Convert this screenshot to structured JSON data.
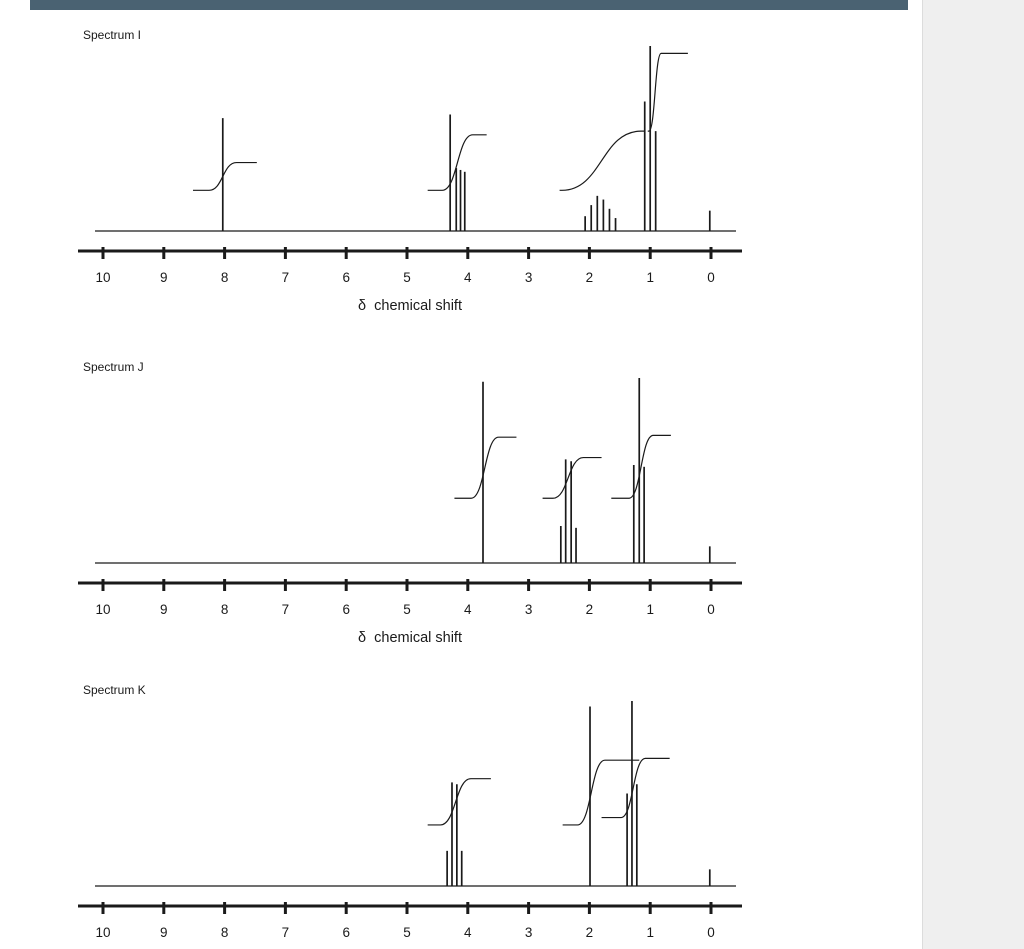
{
  "page": {
    "topbar_color": "#4a6272",
    "side_panel_color": "#efefef",
    "ink_color": "#1a1a1a"
  },
  "chart_data": [
    {
      "type": "line",
      "title": "Spectrum I",
      "xlabel": "δ  chemical shift",
      "x_axis": {
        "ticks": [
          10,
          9,
          8,
          7,
          6,
          5,
          4,
          3,
          2,
          1,
          0
        ],
        "unit_direction": "reversed"
      },
      "peak_groups": [
        {
          "name": "singlet",
          "center": 8.0,
          "lines": [
            [
              8.03,
              0.61
            ]
          ]
        },
        {
          "name": "multiplet",
          "center": 4.15,
          "lines": [
            [
              4.29,
              0.63
            ],
            [
              4.19,
              0.34
            ],
            [
              4.12,
              0.33
            ],
            [
              4.05,
              0.32
            ]
          ]
        },
        {
          "name": "multiplet",
          "center": 1.8,
          "lines": [
            [
              2.07,
              0.08
            ],
            [
              1.97,
              0.14
            ],
            [
              1.87,
              0.19
            ],
            [
              1.77,
              0.17
            ],
            [
              1.67,
              0.12
            ],
            [
              1.57,
              0.07
            ]
          ]
        },
        {
          "name": "triplet",
          "center": 1.0,
          "lines": [
            [
              1.09,
              0.7
            ],
            [
              1.0,
              1.0
            ],
            [
              0.91,
              0.54
            ]
          ]
        },
        {
          "name": "tms",
          "center": 0.0,
          "lines": [
            [
              0.02,
              0.11
            ]
          ]
        }
      ],
      "integrals": [
        {
          "from": 8.52,
          "to": 7.47,
          "y_from": 0.22,
          "y_to": 0.37,
          "rise_at": 8.03,
          "rise_width": 0.45
        },
        {
          "from": 4.66,
          "to": 3.69,
          "y_from": 0.22,
          "y_to": 0.52,
          "rise_at": 4.17,
          "rise_width": 0.5
        },
        {
          "from": 2.49,
          "to": 1.09,
          "y_from": 0.22,
          "y_to": 0.54,
          "rise_at": 1.8,
          "rise_width": 1.3
        },
        {
          "from": 1.04,
          "to": 0.38,
          "y_from": 0.54,
          "y_to": 0.96,
          "rise_at": 0.92,
          "rise_width": 0.2
        }
      ]
    },
    {
      "type": "line",
      "title": "Spectrum J",
      "xlabel": "δ  chemical shift",
      "x_axis": {
        "ticks": [
          10,
          9,
          8,
          7,
          6,
          5,
          4,
          3,
          2,
          1,
          0
        ],
        "unit_direction": "reversed"
      },
      "peak_groups": [
        {
          "name": "singlet",
          "center": 3.75,
          "lines": [
            [
              3.75,
              0.98
            ]
          ]
        },
        {
          "name": "quartet",
          "center": 2.35,
          "lines": [
            [
              2.47,
              0.2
            ],
            [
              2.39,
              0.56
            ],
            [
              2.3,
              0.55
            ],
            [
              2.22,
              0.19
            ]
          ]
        },
        {
          "name": "triplet",
          "center": 1.18,
          "lines": [
            [
              1.27,
              0.53
            ],
            [
              1.18,
              1.0
            ],
            [
              1.1,
              0.52
            ]
          ]
        },
        {
          "name": "tms",
          "center": 0.0,
          "lines": [
            [
              0.02,
              0.09
            ]
          ]
        }
      ],
      "integrals": [
        {
          "from": 4.22,
          "to": 3.2,
          "y_from": 0.35,
          "y_to": 0.68,
          "rise_at": 3.72,
          "rise_width": 0.45
        },
        {
          "from": 2.77,
          "to": 1.8,
          "y_from": 0.35,
          "y_to": 0.57,
          "rise_at": 2.35,
          "rise_width": 0.5
        },
        {
          "from": 1.64,
          "to": 0.66,
          "y_from": 0.35,
          "y_to": 0.69,
          "rise_at": 1.15,
          "rise_width": 0.4
        }
      ]
    },
    {
      "type": "line",
      "title": "Spectrum K",
      "xlabel": "",
      "x_axis": {
        "ticks": [
          10,
          9,
          8,
          7,
          6,
          5,
          4,
          3,
          2,
          1,
          0
        ],
        "unit_direction": "reversed"
      },
      "peak_groups": [
        {
          "name": "quartet",
          "center": 4.2,
          "lines": [
            [
              4.34,
              0.19
            ],
            [
              4.26,
              0.56
            ],
            [
              4.18,
              0.55
            ],
            [
              4.1,
              0.19
            ]
          ]
        },
        {
          "name": "singlet",
          "center": 2.0,
          "lines": [
            [
              1.99,
              0.97
            ]
          ]
        },
        {
          "name": "triplet",
          "center": 1.3,
          "lines": [
            [
              1.38,
              0.5
            ],
            [
              1.3,
              1.0
            ],
            [
              1.22,
              0.55
            ]
          ]
        },
        {
          "name": "tms",
          "center": 0.0,
          "lines": [
            [
              0.02,
              0.09
            ]
          ]
        }
      ],
      "integrals": [
        {
          "from": 4.66,
          "to": 3.62,
          "y_from": 0.33,
          "y_to": 0.58,
          "rise_at": 4.2,
          "rise_width": 0.5
        },
        {
          "from": 2.44,
          "to": 1.18,
          "y_from": 0.33,
          "y_to": 0.68,
          "rise_at": 1.97,
          "rise_width": 0.45
        },
        {
          "from": 1.8,
          "to": 0.68,
          "y_from": 0.37,
          "y_to": 0.69,
          "rise_at": 1.28,
          "rise_width": 0.4
        }
      ]
    }
  ]
}
